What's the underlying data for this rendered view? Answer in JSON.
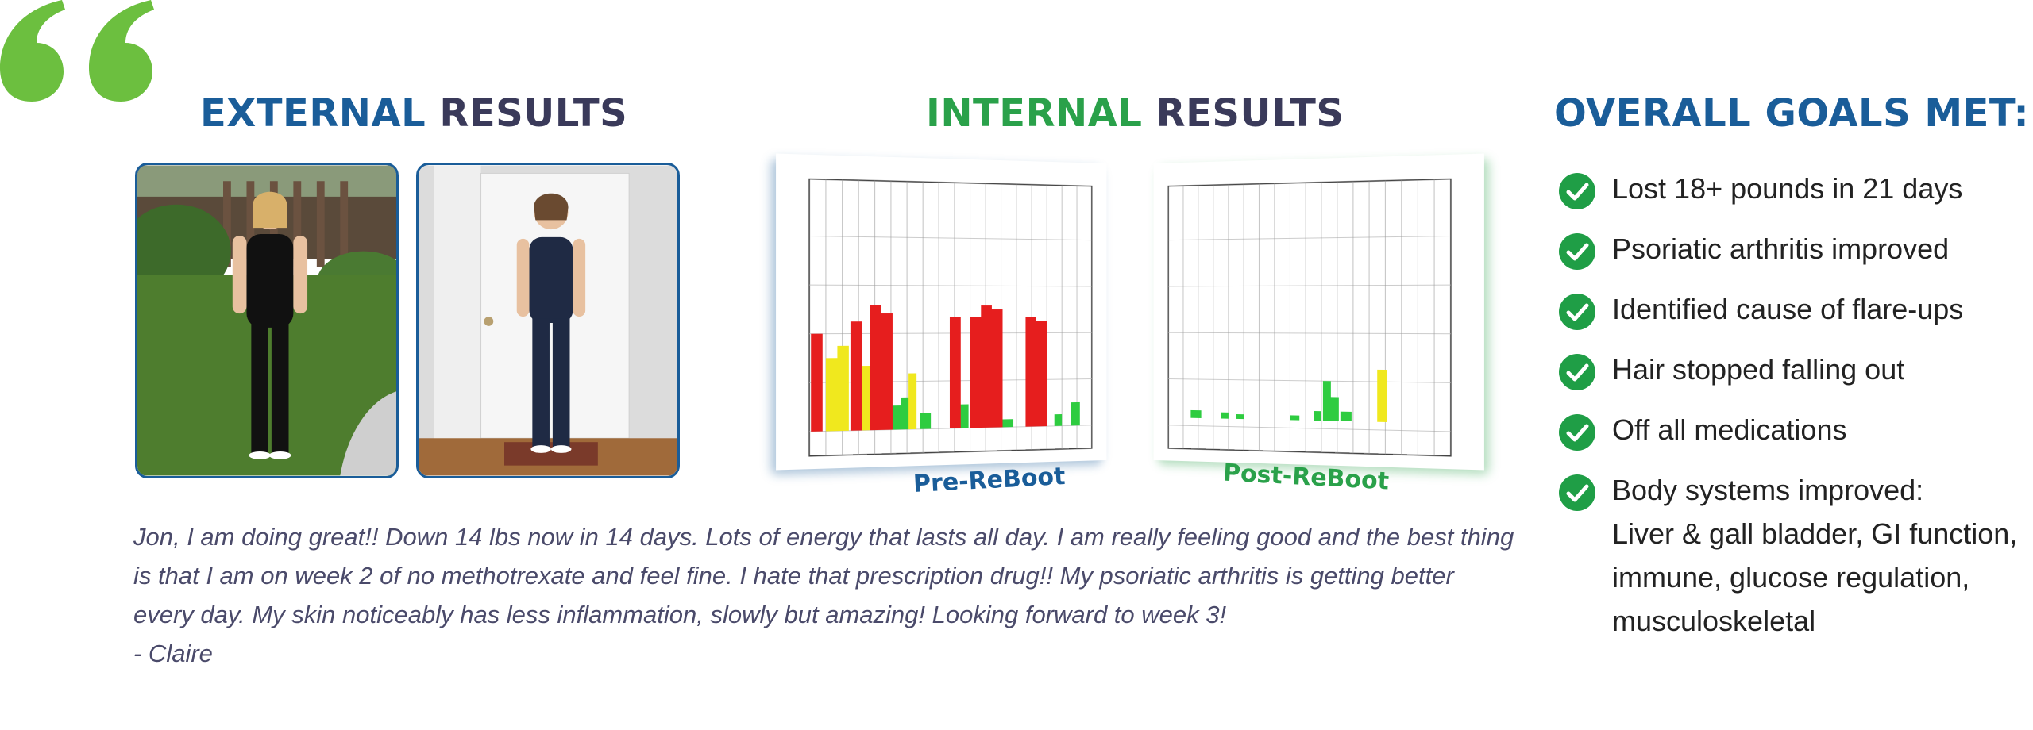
{
  "headings": {
    "external": {
      "accent": "EXTERNAL",
      "rest": "RESULTS"
    },
    "internal": {
      "accent": "INTERNAL",
      "rest": "RESULTS"
    },
    "goals": "OVERALL GOALS MET:"
  },
  "photos": [
    {
      "id": "before",
      "icon": "before-photo"
    },
    {
      "id": "after",
      "icon": "after-photo"
    }
  ],
  "charts": {
    "pre": {
      "caption": "Pre-ReBoot"
    },
    "post": {
      "caption": "Post-ReBoot"
    }
  },
  "testimonial": {
    "text": "Jon, I am doing great!! Down 14 lbs now in 14 days. Lots of energy that lasts all day. I am really feeling good and the best thing is that I am on week 2 of no methotrexate and feel fine. I hate that prescription drug!! My psoriatic arthritis is getting better every day. My skin noticeably has less inflammation, slowly but amazing! Looking forward to week 3!",
    "author": "- Claire"
  },
  "goals": [
    {
      "label": "Lost 18+ pounds in 21 days"
    },
    {
      "label": "Psoriatic arthritis improved"
    },
    {
      "label": "Identified cause of flare-ups"
    },
    {
      "label": "Hair stopped falling out"
    },
    {
      "label": "Off all medications"
    },
    {
      "label": "Body systems improved:",
      "sub": "Liver & gall bladder, GI function,\nimmune, glucose regulation,\nmusculoskeletal"
    }
  ],
  "colors": {
    "blue": "#1a5d99",
    "green": "#2aa14a",
    "quote_green": "#6cbf3f",
    "navy": "#3a3a5a",
    "check_green": "#1f9e46",
    "bar_red": "#e61e1e",
    "bar_yellow": "#f0e81e",
    "bar_green": "#2ecc40"
  }
}
